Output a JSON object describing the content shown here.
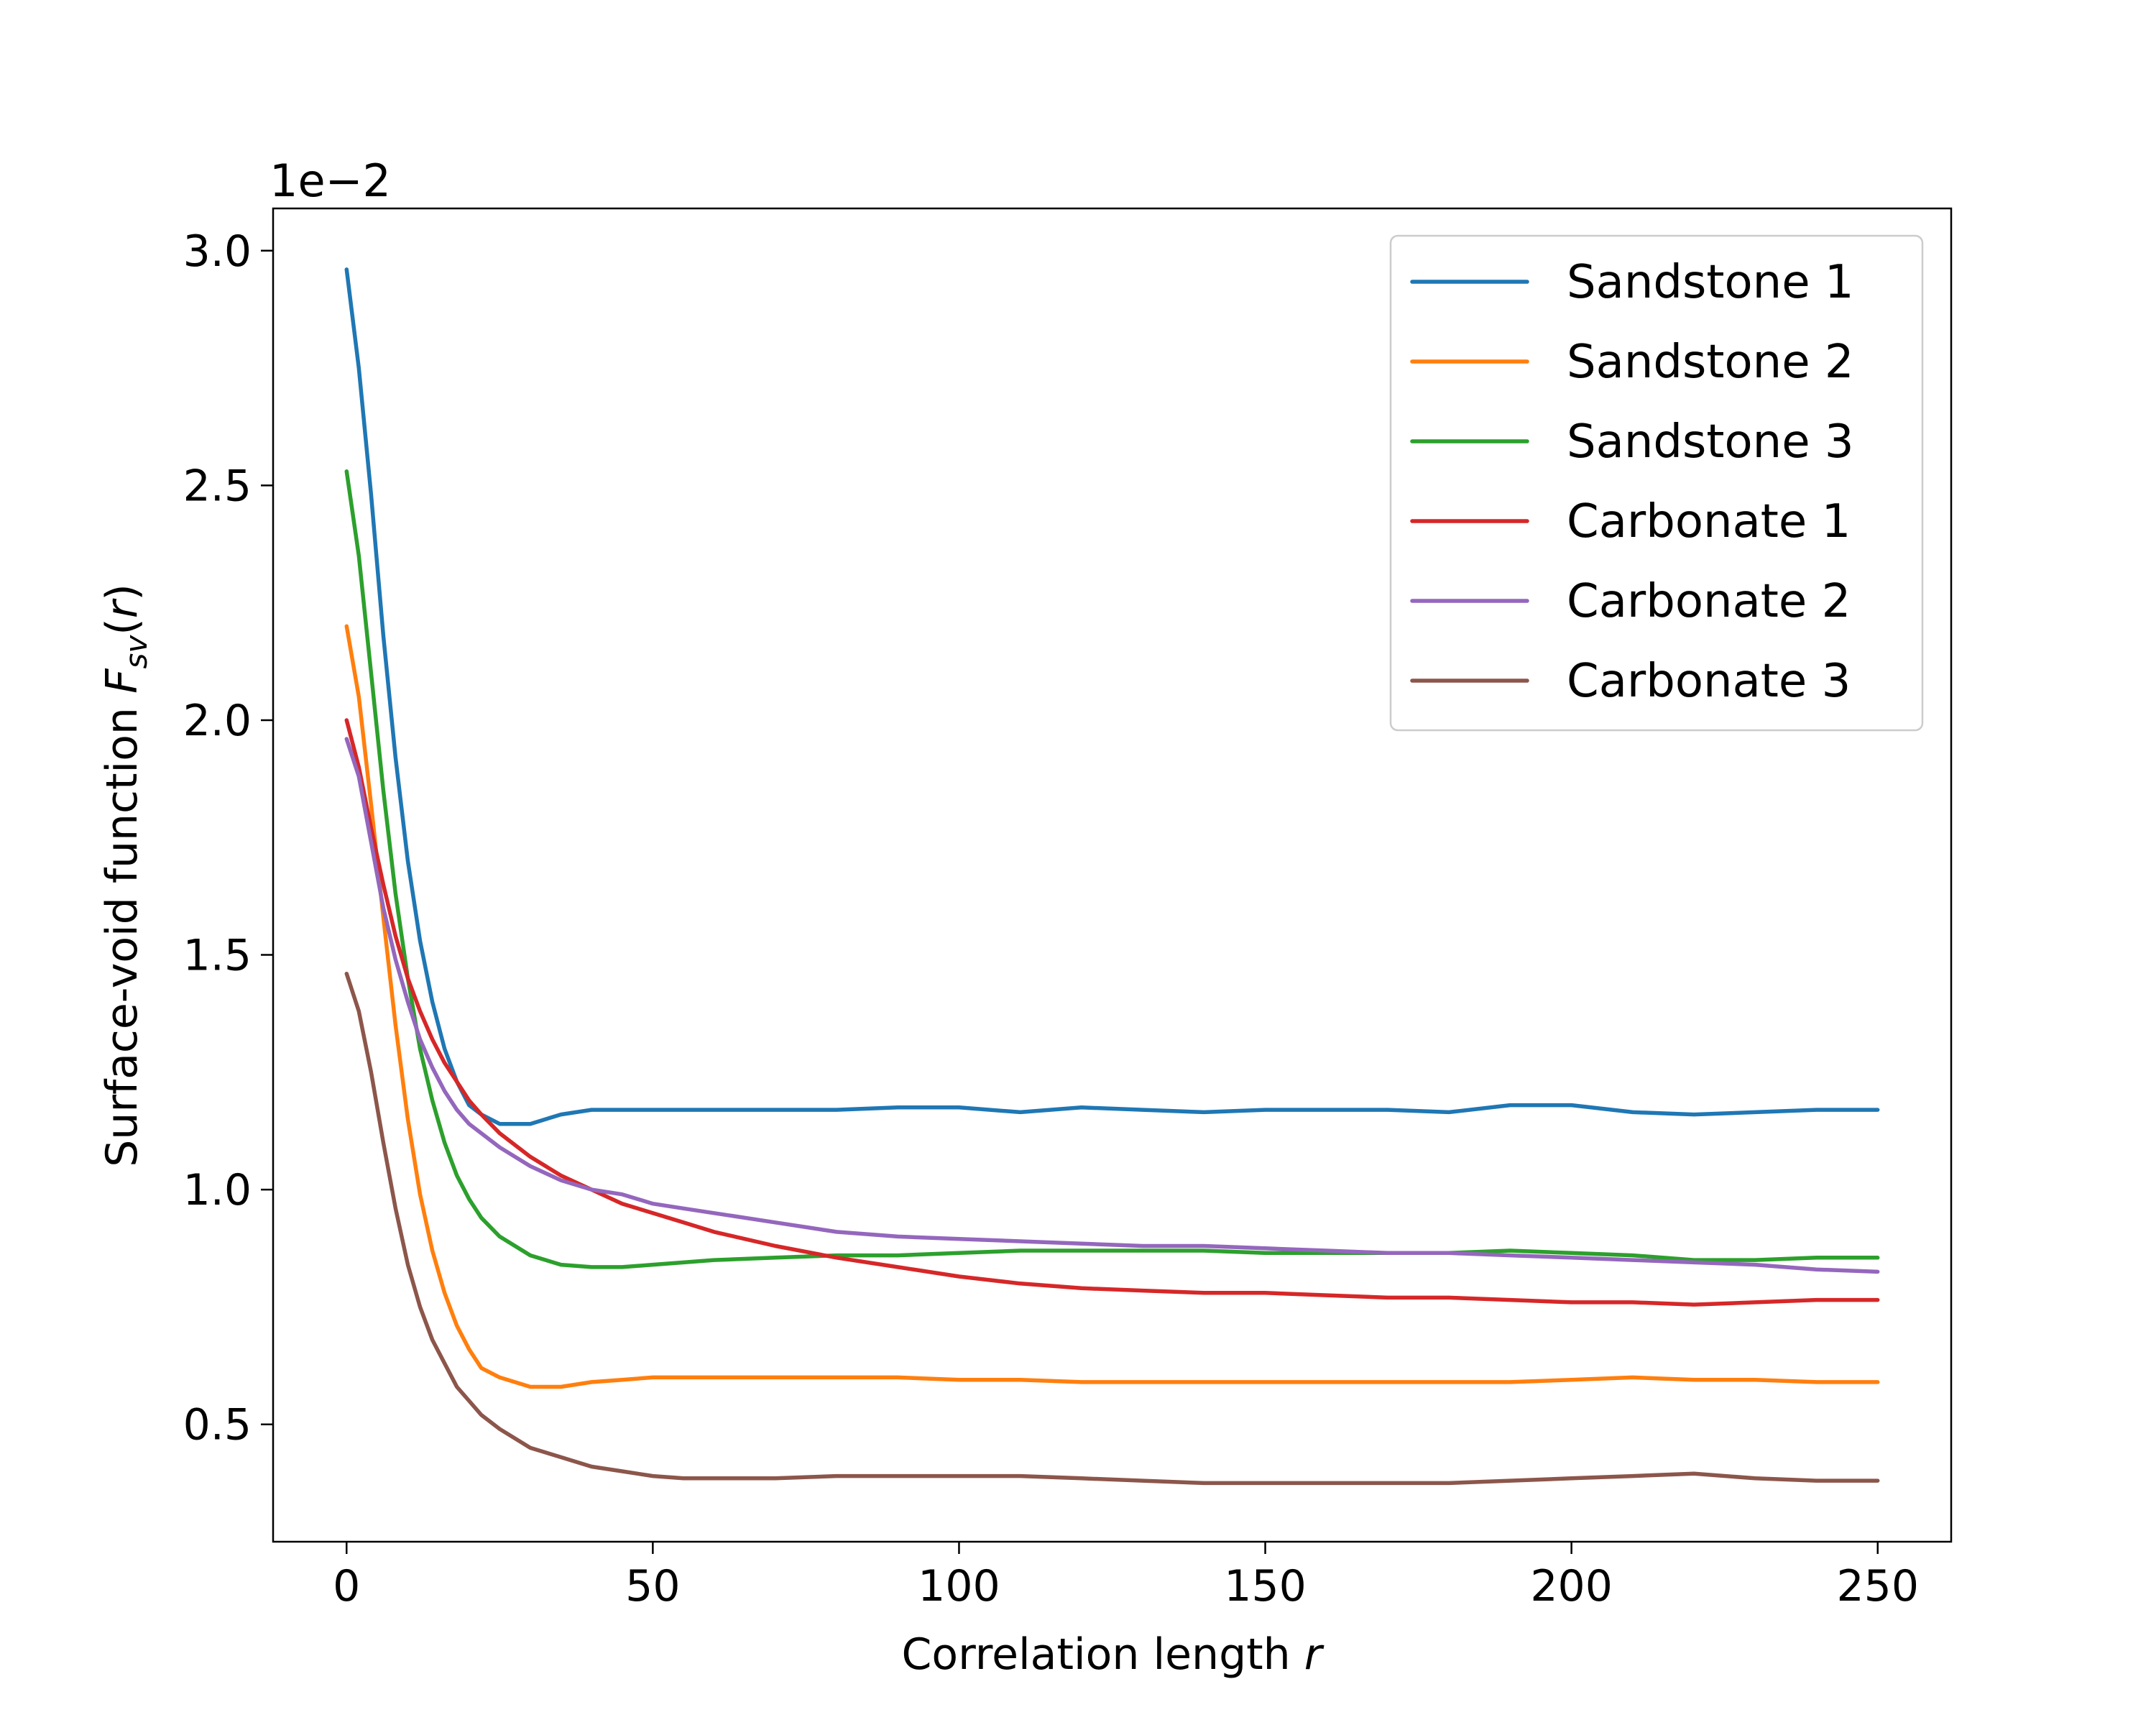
{
  "chart_data": {
    "type": "line",
    "xlabel": "Correlation length r",
    "xlabel_main": "Correlation length ",
    "xlabel_var": "r",
    "ylabel_main": "Surface-void function ",
    "ylabel_var": "F",
    "ylabel_sub": "sv",
    "ylabel_paren_open": "(",
    "ylabel_arg": "r",
    "ylabel_paren_close": ")",
    "y_offset_label": "1e−2",
    "xlim": [
      -12,
      262
    ],
    "ylim": [
      0.25,
      3.09
    ],
    "xticks": [
      0,
      50,
      100,
      150,
      200,
      250
    ],
    "xtick_labels": [
      "0",
      "50",
      "100",
      "150",
      "200",
      "250"
    ],
    "yticks": [
      0.5,
      1.0,
      1.5,
      2.0,
      2.5,
      3.0
    ],
    "ytick_labels": [
      "0.5",
      "1.0",
      "1.5",
      "2.0",
      "2.5",
      "3.0"
    ],
    "grid": false,
    "legend_position": "top-right",
    "x": [
      0,
      2,
      4,
      6,
      8,
      10,
      12,
      14,
      16,
      18,
      20,
      22,
      25,
      30,
      35,
      40,
      45,
      50,
      55,
      60,
      70,
      80,
      90,
      100,
      110,
      120,
      130,
      140,
      150,
      160,
      170,
      180,
      190,
      200,
      210,
      220,
      230,
      240,
      250
    ],
    "series": [
      {
        "name": "Sandstone 1",
        "color": "#1f77b4",
        "values": [
          2.96,
          2.75,
          2.48,
          2.18,
          1.92,
          1.7,
          1.53,
          1.4,
          1.3,
          1.23,
          1.18,
          1.16,
          1.14,
          1.14,
          1.16,
          1.17,
          1.17,
          1.17,
          1.17,
          1.17,
          1.17,
          1.17,
          1.175,
          1.175,
          1.165,
          1.175,
          1.17,
          1.165,
          1.17,
          1.17,
          1.17,
          1.165,
          1.18,
          1.18,
          1.165,
          1.16,
          1.165,
          1.17,
          1.17
        ]
      },
      {
        "name": "Sandstone 2",
        "color": "#ff7f0e",
        "values": [
          2.2,
          2.05,
          1.82,
          1.58,
          1.35,
          1.15,
          0.99,
          0.87,
          0.78,
          0.71,
          0.66,
          0.62,
          0.6,
          0.58,
          0.58,
          0.59,
          0.595,
          0.6,
          0.6,
          0.6,
          0.6,
          0.6,
          0.6,
          0.595,
          0.595,
          0.59,
          0.59,
          0.59,
          0.59,
          0.59,
          0.59,
          0.59,
          0.59,
          0.595,
          0.6,
          0.595,
          0.595,
          0.59,
          0.59
        ]
      },
      {
        "name": "Sandstone 3",
        "color": "#2ca02c",
        "values": [
          2.53,
          2.35,
          2.1,
          1.85,
          1.63,
          1.45,
          1.3,
          1.19,
          1.1,
          1.03,
          0.98,
          0.94,
          0.9,
          0.86,
          0.84,
          0.835,
          0.835,
          0.84,
          0.845,
          0.85,
          0.855,
          0.86,
          0.86,
          0.865,
          0.87,
          0.87,
          0.87,
          0.87,
          0.865,
          0.865,
          0.865,
          0.865,
          0.87,
          0.865,
          0.86,
          0.85,
          0.85,
          0.855,
          0.855
        ]
      },
      {
        "name": "Carbonate 1",
        "color": "#d62728",
        "values": [
          2.0,
          1.9,
          1.77,
          1.65,
          1.54,
          1.45,
          1.38,
          1.32,
          1.27,
          1.23,
          1.19,
          1.16,
          1.12,
          1.07,
          1.03,
          1.0,
          0.97,
          0.95,
          0.93,
          0.91,
          0.88,
          0.855,
          0.835,
          0.815,
          0.8,
          0.79,
          0.785,
          0.78,
          0.78,
          0.775,
          0.77,
          0.77,
          0.765,
          0.76,
          0.76,
          0.755,
          0.76,
          0.765,
          0.765
        ]
      },
      {
        "name": "Carbonate 2",
        "color": "#9467bd",
        "values": [
          1.96,
          1.88,
          1.74,
          1.6,
          1.49,
          1.4,
          1.32,
          1.26,
          1.21,
          1.17,
          1.14,
          1.12,
          1.09,
          1.05,
          1.02,
          1.0,
          0.99,
          0.97,
          0.96,
          0.95,
          0.93,
          0.91,
          0.9,
          0.895,
          0.89,
          0.885,
          0.88,
          0.88,
          0.875,
          0.87,
          0.865,
          0.865,
          0.86,
          0.855,
          0.85,
          0.845,
          0.84,
          0.83,
          0.825
        ]
      },
      {
        "name": "Carbonate 3",
        "color": "#8c564b",
        "values": [
          1.46,
          1.38,
          1.25,
          1.1,
          0.96,
          0.84,
          0.75,
          0.68,
          0.63,
          0.58,
          0.55,
          0.52,
          0.49,
          0.45,
          0.43,
          0.41,
          0.4,
          0.39,
          0.385,
          0.385,
          0.385,
          0.39,
          0.39,
          0.39,
          0.39,
          0.385,
          0.38,
          0.375,
          0.375,
          0.375,
          0.375,
          0.375,
          0.38,
          0.385,
          0.39,
          0.395,
          0.385,
          0.38,
          0.38
        ]
      }
    ]
  }
}
